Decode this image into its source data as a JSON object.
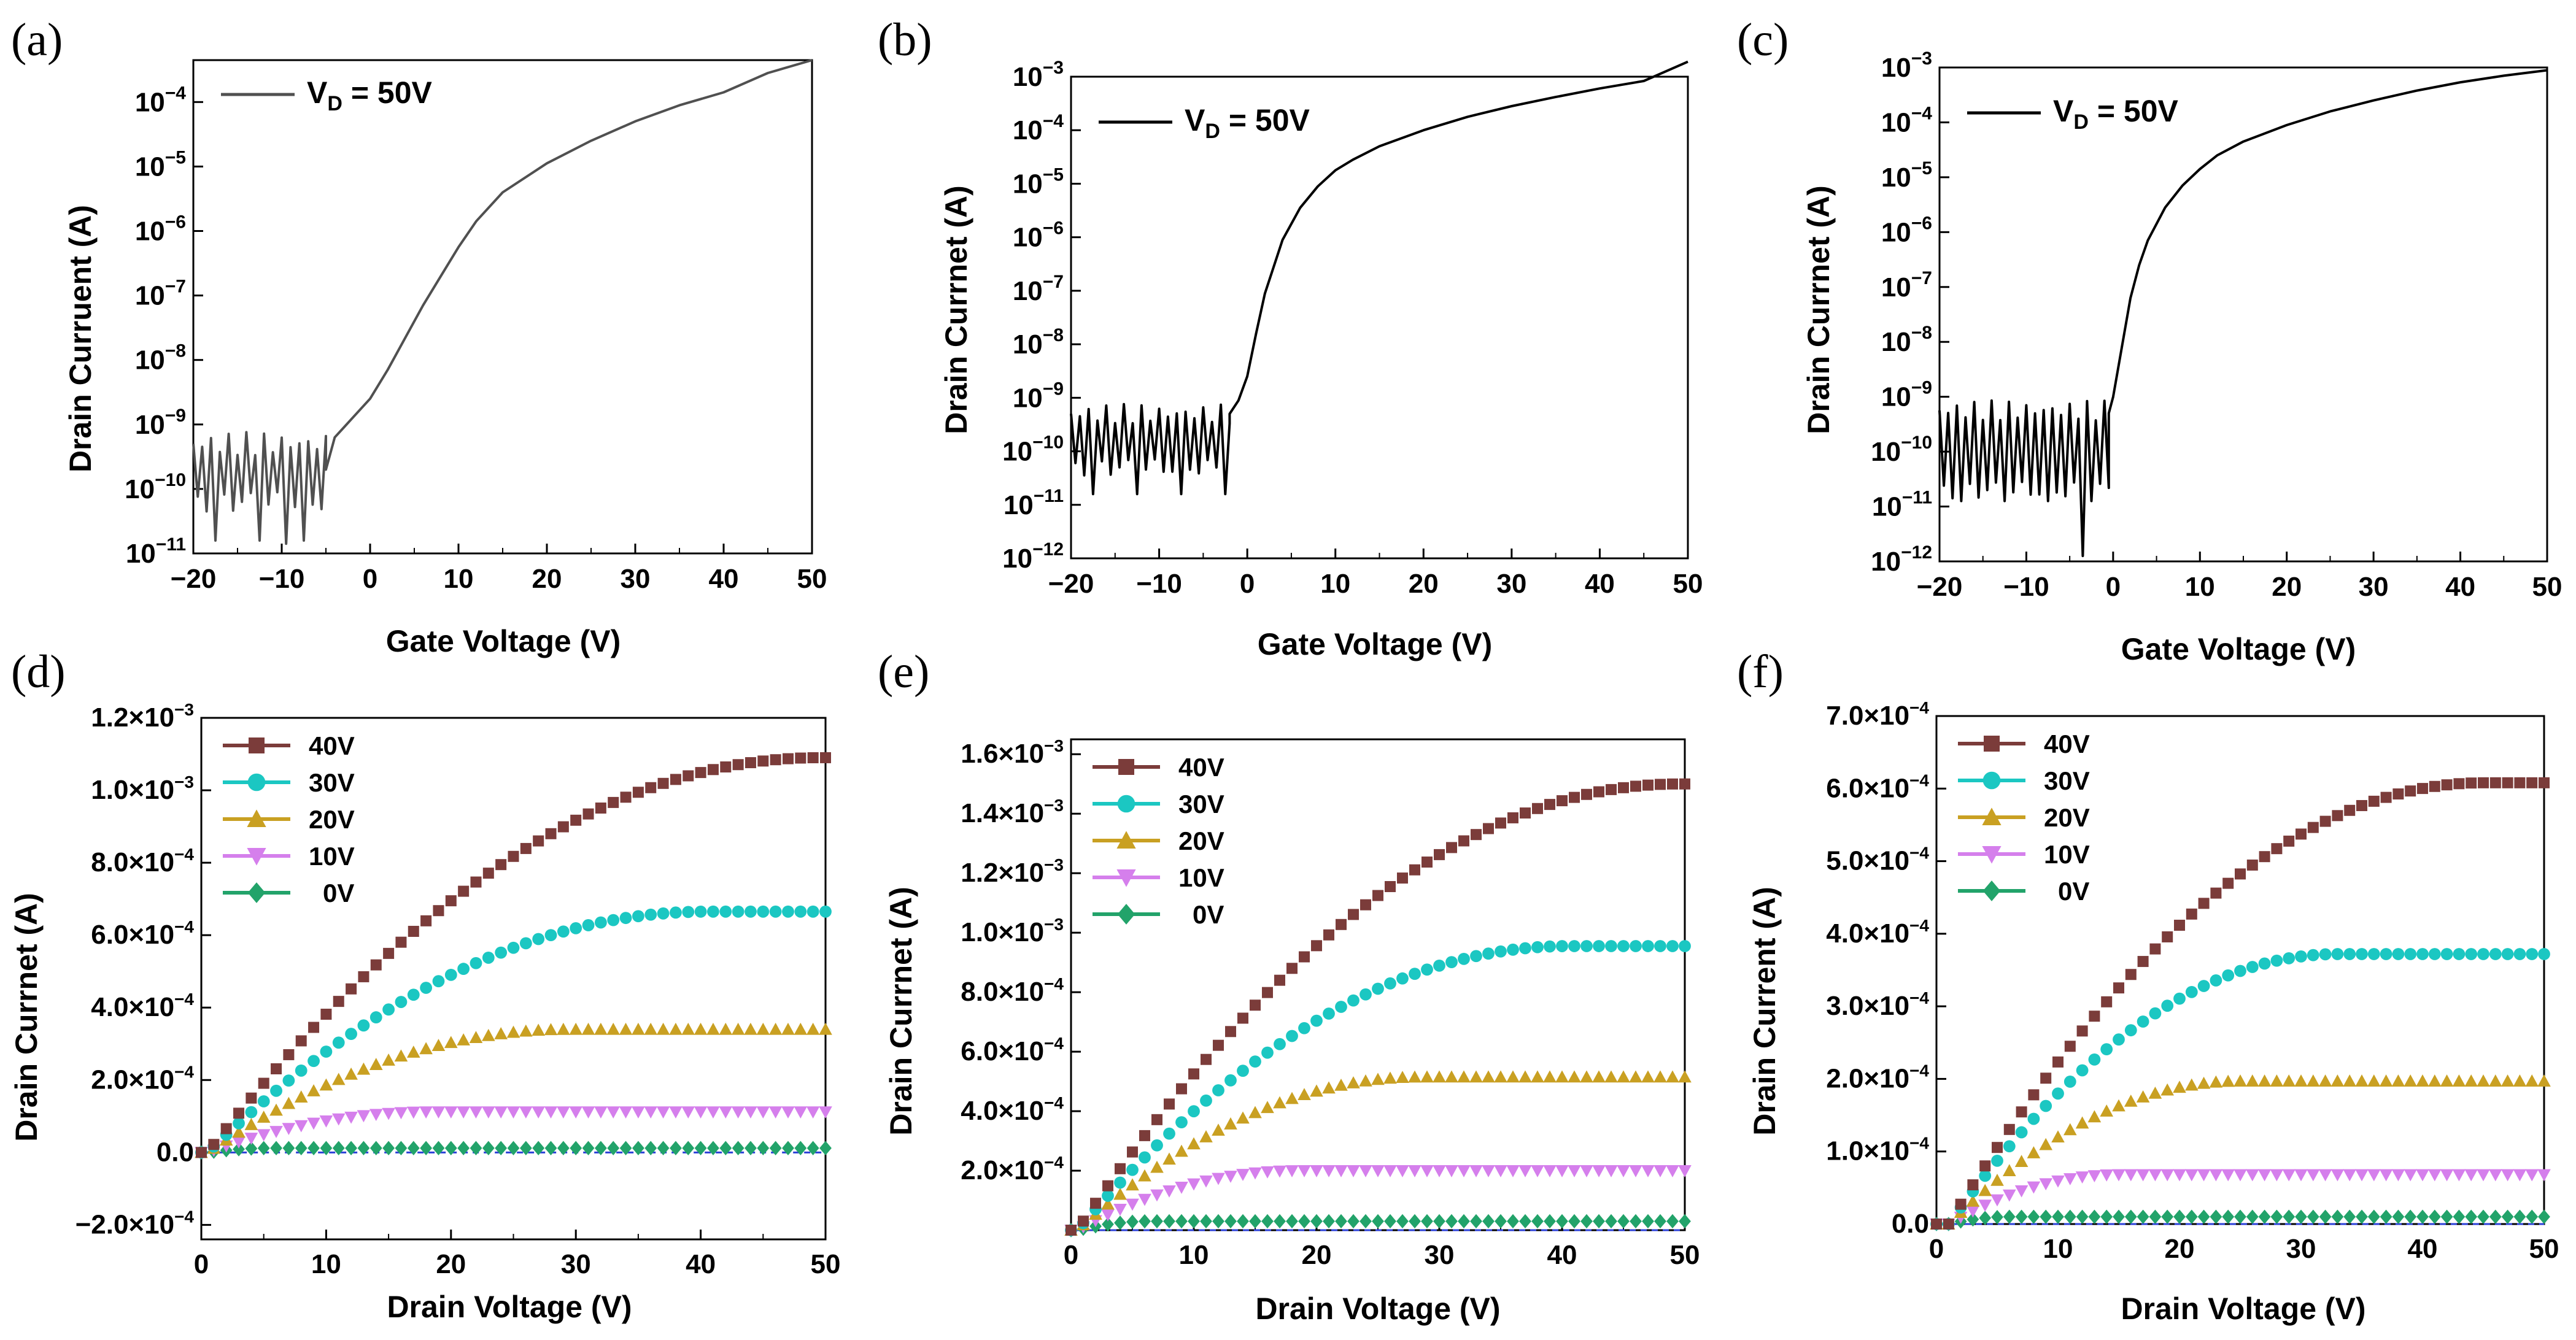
{
  "chart_data": [
    {
      "panel_label": "(a)",
      "type": "line",
      "yscale": "log",
      "xlabel": "Gate Voltage (V)",
      "ylabel": "Drain Curruent (A)",
      "xlim": [
        -20,
        50
      ],
      "ylim_exp": [
        -11,
        -3.35
      ],
      "xticks": [
        "−20",
        "−10",
        "0",
        "10",
        "20",
        "30",
        "40",
        "50"
      ],
      "yticks_exp": [
        -11,
        -10,
        -9,
        -8,
        -7,
        -6,
        -5,
        -4
      ],
      "legend": {
        "main": "V",
        "sub": "D",
        "rest": " = 50V"
      },
      "line_color": "#505050",
      "noise": {
        "start": -20,
        "end": -5,
        "low_exp": -10.2,
        "high_exp": -9.3,
        "deep_exp": -10.8,
        "deepest_exp": -10.85,
        "deepest_at": -9.5
      },
      "series": [
        {
          "name": "VD = 50V",
          "x": [
            -5,
            -4,
            -3,
            -2,
            0,
            2,
            4,
            6,
            8,
            10,
            12,
            15,
            20,
            25,
            30,
            35,
            40,
            45,
            50
          ],
          "y_exp": [
            -9.7,
            -9.2,
            -9.05,
            -8.9,
            -8.6,
            -8.15,
            -7.65,
            -7.15,
            -6.7,
            -6.25,
            -5.85,
            -5.4,
            -4.95,
            -4.6,
            -4.3,
            -4.05,
            -3.85,
            -3.55,
            -3.35
          ]
        }
      ]
    },
    {
      "panel_label": "(b)",
      "type": "line",
      "yscale": "log",
      "xlabel": "Gate Voltage (V)",
      "ylabel": "Drain Currnet (A)",
      "xlim": [
        -20,
        50
      ],
      "ylim_exp": [
        -12,
        -3
      ],
      "xticks": [
        "−20",
        "−10",
        "0",
        "10",
        "20",
        "30",
        "40",
        "50"
      ],
      "yticks_exp": [
        -12,
        -11,
        -10,
        -9,
        -8,
        -7,
        -6,
        -5,
        -4,
        -3
      ],
      "legend": {
        "main": "V",
        "sub": "D",
        "rest": " = 50V"
      },
      "line_color": "#000000",
      "noise": {
        "start": -20,
        "end": -2,
        "low_exp": -10.3,
        "high_exp": -9.3,
        "deep_exp": -10.8,
        "deepest_exp": -10.9,
        "deepest_at": -3
      },
      "series": [
        {
          "name": "VD = 50V",
          "x": [
            -2,
            -1,
            0,
            1,
            2,
            4,
            6,
            8,
            10,
            12,
            15,
            20,
            25,
            30,
            35,
            40,
            45,
            50
          ],
          "y_exp": [
            -9.3,
            -9.05,
            -8.6,
            -7.8,
            -7.05,
            -6.05,
            -5.45,
            -5.05,
            -4.75,
            -4.55,
            -4.3,
            -4.0,
            -3.75,
            -3.55,
            -3.38,
            -3.22,
            -3.08,
            -2.72
          ]
        }
      ]
    },
    {
      "panel_label": "(c)",
      "type": "line",
      "yscale": "log",
      "xlabel": "Gate Voltage (V)",
      "ylabel": "Drain Currnet (A)",
      "xlim": [
        -20,
        50
      ],
      "ylim_exp": [
        -12,
        -3
      ],
      "xticks": [
        "−20",
        "−10",
        "0",
        "10",
        "20",
        "30",
        "40",
        "50"
      ],
      "yticks_exp": [
        -12,
        -11,
        -10,
        -9,
        -8,
        -7,
        -6,
        -5,
        -4,
        -3
      ],
      "legend": {
        "main": "V",
        "sub": "D",
        "rest": " = 50V"
      },
      "line_color": "#000000",
      "noise": {
        "start": -20,
        "end": -0.5,
        "low_exp": -10.7,
        "high_exp": -9.25,
        "deep_exp": -10.9,
        "deepest_exp": -11.9,
        "deepest_at": -3.5
      },
      "series": [
        {
          "name": "VD = 50V",
          "x": [
            -0.5,
            0,
            1,
            2,
            3,
            4,
            6,
            8,
            10,
            12,
            15,
            20,
            25,
            30,
            35,
            40,
            45,
            50
          ],
          "y_exp": [
            -9.3,
            -9.0,
            -8.1,
            -7.2,
            -6.6,
            -6.15,
            -5.55,
            -5.15,
            -4.85,
            -4.6,
            -4.35,
            -4.05,
            -3.8,
            -3.6,
            -3.42,
            -3.27,
            -3.15,
            -3.05
          ]
        }
      ]
    },
    {
      "panel_label": "(d)",
      "type": "scatter",
      "xlabel": "Drain Voltage (V)",
      "ylabel": "Drain Currnet (A)",
      "xlim": [
        0,
        50
      ],
      "ylim": [
        -0.00024,
        0.0012
      ],
      "xticks": [
        0,
        10,
        20,
        30,
        40,
        50
      ],
      "yticks": [
        {
          "v": -0.0002,
          "m": "−2.0",
          "e": "-4"
        },
        {
          "v": 0,
          "m": "0.0",
          "e": ""
        },
        {
          "v": 0.0002,
          "m": "2.0",
          "e": "-4"
        },
        {
          "v": 0.0004,
          "m": "4.0",
          "e": "-4"
        },
        {
          "v": 0.0006,
          "m": "6.0",
          "e": "-4"
        },
        {
          "v": 0.0008,
          "m": "8.0",
          "e": "-4"
        },
        {
          "v": 0.001,
          "m": "1.0",
          "e": "-3"
        },
        {
          "v": 0.0012,
          "m": "1.2",
          "e": "-3"
        }
      ],
      "series": [
        {
          "name": "40V",
          "sat": 0.00109,
          "vsat": 49,
          "v0": 0.5
        },
        {
          "name": "30V",
          "sat": 0.000665,
          "vsat": 40,
          "v0": 0.5
        },
        {
          "name": "20V",
          "sat": 0.00034,
          "vsat": 29,
          "v0": 0.5
        },
        {
          "name": "10V",
          "sat": 0.000112,
          "vsat": 18,
          "v0": 0.5
        },
        {
          "name": "0V",
          "sat": 1.2e-05,
          "vsat": 5,
          "v0": 0.5
        }
      ]
    },
    {
      "panel_label": "(e)",
      "type": "scatter",
      "xlabel": "Drain Voltage (V)",
      "ylabel": "Drain Currnet (A)",
      "xlim": [
        0,
        50
      ],
      "ylim": [
        0,
        0.00165
      ],
      "xticks": [
        0,
        10,
        20,
        30,
        40,
        50
      ],
      "yticks": [
        {
          "v": 0.0002,
          "m": "2.0",
          "e": "-4"
        },
        {
          "v": 0.0004,
          "m": "4.0",
          "e": "-4"
        },
        {
          "v": 0.0006,
          "m": "6.0",
          "e": "-4"
        },
        {
          "v": 0.0008,
          "m": "8.0",
          "e": "-4"
        },
        {
          "v": 0.001,
          "m": "1.0",
          "e": "-3"
        },
        {
          "v": 0.0012,
          "m": "1.2",
          "e": "-3"
        },
        {
          "v": 0.0014,
          "m": "1.4",
          "e": "-3"
        },
        {
          "v": 0.0016,
          "m": "1.6",
          "e": "-3"
        }
      ],
      "series": [
        {
          "name": "40V",
          "sat": 0.0015,
          "vsat": 49,
          "v0": 0.5
        },
        {
          "name": "30V",
          "sat": 0.000955,
          "vsat": 40,
          "v0": 0.5
        },
        {
          "name": "20V",
          "sat": 0.000515,
          "vsat": 28,
          "v0": 0.5
        },
        {
          "name": "10V",
          "sat": 0.0002,
          "vsat": 18,
          "v0": 0.5
        },
        {
          "name": "0V",
          "sat": 3e-05,
          "vsat": 6,
          "v0": 0.5
        }
      ]
    },
    {
      "panel_label": "(f)",
      "type": "scatter",
      "xlabel": "Drain Voltage (V)",
      "ylabel": "Drain Current (A)",
      "xlim": [
        0,
        50
      ],
      "ylim": [
        0,
        0.0007
      ],
      "xticks": [
        0,
        10,
        20,
        30,
        40,
        50
      ],
      "yticks": [
        {
          "v": 0,
          "m": "0.0",
          "e": ""
        },
        {
          "v": 0.0001,
          "m": "1.0",
          "e": "-4"
        },
        {
          "v": 0.0002,
          "m": "2.0",
          "e": "-4"
        },
        {
          "v": 0.0003,
          "m": "3.0",
          "e": "-4"
        },
        {
          "v": 0.0004,
          "m": "4.0",
          "e": "-4"
        },
        {
          "v": 0.0005,
          "m": "5.0",
          "e": "-4"
        },
        {
          "v": 0.0006,
          "m": "6.0",
          "e": "-4"
        },
        {
          "v": 0.0007,
          "m": "7.0",
          "e": "-4"
        }
      ],
      "series": [
        {
          "name": "40V",
          "sat": 0.000608,
          "vsat": 44,
          "v0": 1.0
        },
        {
          "name": "30V",
          "sat": 0.000372,
          "vsat": 32,
          "v0": 1.0
        },
        {
          "name": "20V",
          "sat": 0.000197,
          "vsat": 24,
          "v0": 1.0
        },
        {
          "name": "10V",
          "sat": 6.8e-05,
          "vsat": 14,
          "v0": 1.0
        },
        {
          "name": "0V",
          "sat": 1e-05,
          "vsat": 5,
          "v0": 1.0
        }
      ]
    }
  ],
  "output_styles": [
    {
      "name": "40V",
      "color": "#7B3C3A",
      "marker": "square"
    },
    {
      "name": "30V",
      "color": "#1BC7C2",
      "marker": "circle"
    },
    {
      "name": "20V",
      "color": "#C9A022",
      "marker": "triangle-up"
    },
    {
      "name": "10V",
      "color": "#D57FEC",
      "marker": "triangle-down"
    },
    {
      "name": "0V",
      "color": "#22A36A",
      "marker": "diamond"
    }
  ],
  "legend_labels": [
    "40V",
    "30V",
    "20V",
    "10V",
    "0V"
  ]
}
